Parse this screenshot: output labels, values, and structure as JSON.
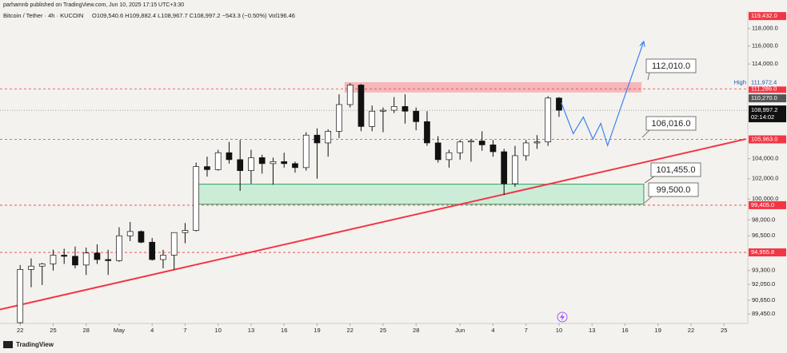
{
  "author_line": "parhamnb published on TradingView.com, Jun 10, 2025 17:15 UTC+3:30",
  "footer": "TradingView",
  "chart_data": {
    "type": "candlestick",
    "symbol": "Bitcoin / Tether · 4h · KUCOIN",
    "ohlc": "O109,540.6 H109,882.4 L108,967.7 C108,997.2 −543.3 (−0.50%) Vol196.46",
    "log": true,
    "up_color": "#ffffff",
    "down_color": "#111111",
    "edge_color": "#111111",
    "xlim": [
      "2025-04-20T04:00",
      "2025-06-27T04:00"
    ],
    "ylim": [
      88630,
      120000
    ],
    "x": [
      "2025-04-22",
      "2025-04-23",
      "2025-04-24",
      "2025-04-25",
      "2025-04-26",
      "2025-04-27",
      "2025-04-28",
      "2025-04-29",
      "2025-04-30",
      "2025-05-01",
      "2025-05-02",
      "2025-05-03",
      "2025-05-04",
      "2025-05-05",
      "2025-05-06",
      "2025-05-07",
      "2025-05-08",
      "2025-05-09",
      "2025-05-10",
      "2025-05-11",
      "2025-05-12",
      "2025-05-13",
      "2025-05-14",
      "2025-05-15",
      "2025-05-16",
      "2025-05-17",
      "2025-05-18",
      "2025-05-19",
      "2025-05-20",
      "2025-05-21",
      "2025-05-22",
      "2025-05-23",
      "2025-05-24",
      "2025-05-25",
      "2025-05-26",
      "2025-05-27",
      "2025-05-28",
      "2025-05-29",
      "2025-05-30",
      "2025-05-31",
      "2025-06-01",
      "2025-06-02",
      "2025-06-03",
      "2025-06-04",
      "2025-06-05",
      "2025-06-06",
      "2025-06-07",
      "2025-06-08",
      "2025-06-09",
      "2025-06-10"
    ],
    "open": [
      88700,
      93400,
      93700,
      93900,
      94700,
      94600,
      93800,
      94900,
      94300,
      94200,
      96500,
      96900,
      95900,
      94300,
      94700,
      96800,
      97000,
      103200,
      102900,
      104600,
      103900,
      102800,
      104100,
      103500,
      103700,
      103500,
      103100,
      106400,
      105600,
      106800,
      109600,
      111700,
      107300,
      108900,
      109000,
      109400,
      108900,
      107800,
      105600,
      103900,
      104600,
      105700,
      105800,
      105400,
      104700,
      101500,
      104300,
      105600,
      105700,
      110300
    ],
    "high": [
      93800,
      94400,
      94000,
      95200,
      95300,
      95500,
      95400,
      95700,
      95200,
      97300,
      97800,
      97000,
      96300,
      95200,
      96800,
      97700,
      103600,
      104200,
      104900,
      105700,
      105900,
      104900,
      104400,
      104100,
      104600,
      103700,
      106700,
      107100,
      107000,
      110700,
      111900,
      111800,
      109500,
      109300,
      110400,
      110700,
      109300,
      108900,
      106300,
      104900,
      105900,
      106000,
      106800,
      105900,
      105000,
      105300,
      105900,
      106400,
      110500,
      110400
    ],
    "low": [
      88600,
      91800,
      92000,
      93300,
      93900,
      93500,
      92900,
      93900,
      92900,
      94100,
      96000,
      95800,
      94200,
      93500,
      93400,
      95800,
      96900,
      102200,
      102800,
      103500,
      100800,
      101500,
      102500,
      101400,
      103100,
      102600,
      102800,
      102000,
      104200,
      106100,
      109300,
      106800,
      106800,
      106700,
      108700,
      107600,
      106900,
      105300,
      103600,
      103100,
      103900,
      103700,
      104800,
      104200,
      100400,
      101200,
      103800,
      105000,
      105300,
      108300
    ],
    "close": [
      93400,
      93700,
      93900,
      94700,
      94600,
      93800,
      94900,
      94300,
      94200,
      96500,
      96900,
      95900,
      94300,
      94700,
      96800,
      97000,
      103200,
      102900,
      104600,
      103900,
      102800,
      104100,
      103500,
      103700,
      103500,
      103100,
      106400,
      105600,
      106800,
      109600,
      111700,
      107300,
      108900,
      109000,
      109400,
      108900,
      107800,
      105600,
      103900,
      104600,
      105700,
      105800,
      105400,
      104700,
      101500,
      104300,
      105600,
      105700,
      110300,
      108997.2
    ],
    "yticks": [
      {
        "value": 118000,
        "label": "118,000.0"
      },
      {
        "value": 116000,
        "label": "116,000.0"
      },
      {
        "value": 114000,
        "label": "114,000.0"
      },
      {
        "value": 104000,
        "label": "104,000.0"
      },
      {
        "value": 102000,
        "label": "102,000.0"
      },
      {
        "value": 100000,
        "label": "100,000.0"
      },
      {
        "value": 98000,
        "label": "98,000.0"
      },
      {
        "value": 96500,
        "label": "96,500.0"
      },
      {
        "value": 93300,
        "label": "93,300.0"
      },
      {
        "value": 92050,
        "label": "92,050.0"
      },
      {
        "value": 90650,
        "label": "90,650.0"
      },
      {
        "value": 89450,
        "label": "89,450.0"
      }
    ],
    "xticks": [
      {
        "value": "2025-04-22",
        "label": "22"
      },
      {
        "value": "2025-04-25",
        "label": "25"
      },
      {
        "value": "2025-04-28",
        "label": "28"
      },
      {
        "value": "2025-05-01",
        "label": "May"
      },
      {
        "value": "2025-05-04",
        "label": "4"
      },
      {
        "value": "2025-05-07",
        "label": "7"
      },
      {
        "value": "2025-05-10",
        "label": "10"
      },
      {
        "value": "2025-05-13",
        "label": "13"
      },
      {
        "value": "2025-05-16",
        "label": "16"
      },
      {
        "value": "2025-05-19",
        "label": "19"
      },
      {
        "value": "2025-05-22",
        "label": "22"
      },
      {
        "value": "2025-05-25",
        "label": "25"
      },
      {
        "value": "2025-05-28",
        "label": "28"
      },
      {
        "value": "2025-06-01",
        "label": "Jun"
      },
      {
        "value": "2025-06-04",
        "label": "4"
      },
      {
        "value": "2025-06-07",
        "label": "7"
      },
      {
        "value": "2025-06-10",
        "label": "10"
      },
      {
        "value": "2025-06-13",
        "label": "13"
      },
      {
        "value": "2025-06-16",
        "label": "16"
      },
      {
        "value": "2025-06-19",
        "label": "19"
      },
      {
        "value": "2025-06-22",
        "label": "22"
      },
      {
        "value": "2025-06-25",
        "label": "25"
      }
    ],
    "level_color": "#f23645",
    "levels": [
      {
        "value": 111286,
        "label": "111,286.0"
      },
      {
        "value": 105963,
        "label": "105,963.0"
      },
      {
        "value": 99405,
        "label": "99,405.0"
      },
      {
        "value": 94955.8,
        "label": "94,955.8"
      }
    ],
    "price_labels": [
      {
        "value": 119432,
        "label": "119,432.0",
        "color": "#f23645"
      },
      {
        "value": 111972.4,
        "label": "111,972.4",
        "tag": "High",
        "color": "#f4f2ee"
      },
      {
        "value": 110270,
        "label": "110,270.0",
        "color": "#555555"
      }
    ],
    "last": {
      "value": 108997.2,
      "label": "108,997.2",
      "countdown": "02:14:02",
      "color": "#111111"
    },
    "boxes": [
      {
        "x": [
          "2025-05-21T12:00",
          "2025-06-17T12:00"
        ],
        "values": [
          110900,
          112010
        ],
        "color": "#f5a3a8"
      },
      {
        "x": [
          "2025-05-07T22:00",
          "2025-06-17T17:00"
        ],
        "values": [
          99500,
          101455
        ],
        "color": "#bdebd0"
      }
    ],
    "trendline": {
      "x": [
        "2025-04-20T04:00",
        "2025-06-27T00:00"
      ],
      "values": [
        89840,
        106000
      ],
      "color": "#f23645"
    },
    "projection": {
      "x": [
        "2025-06-10T05:00",
        "2025-06-11T07:00",
        "2025-06-12T05:00",
        "2025-06-13T02:00",
        "2025-06-13T19:00",
        "2025-06-14T10:00",
        "2025-06-17T17:00"
      ],
      "values": [
        109800,
        106550,
        108280,
        105990,
        107620,
        105330,
        116560
      ],
      "color": "#3b82f6"
    },
    "annotations": [
      {
        "label": "112,010.0"
      },
      {
        "label": "106,016.0"
      },
      {
        "label": "101,455.0"
      },
      {
        "label": "99,500.0"
      }
    ]
  }
}
